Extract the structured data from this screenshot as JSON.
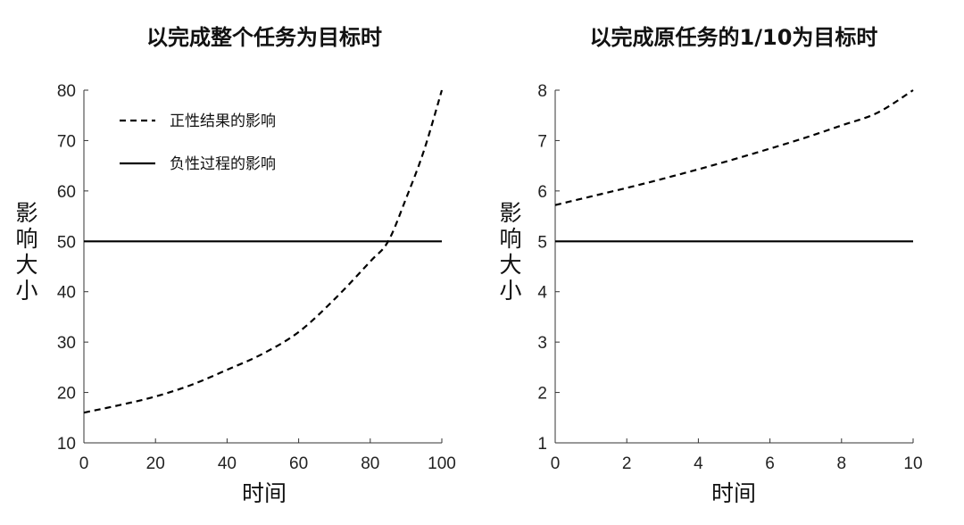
{
  "chart_data": [
    {
      "type": "line",
      "title": "以完成整个任务为目标时",
      "xlabel": "时间",
      "ylabel": "影响大小",
      "xlim": [
        0,
        100
      ],
      "ylim": [
        10,
        80
      ],
      "xticks": [
        0,
        20,
        40,
        60,
        80,
        100
      ],
      "yticks": [
        10,
        20,
        30,
        40,
        50,
        60,
        70,
        80
      ],
      "grid": false,
      "legend_position": "top-left",
      "series": [
        {
          "name": "正性结果的影响",
          "style": "dashed",
          "color": "#000000",
          "x": [
            0,
            10,
            20,
            30,
            40,
            50,
            60,
            70,
            80,
            85,
            90,
            95,
            100
          ],
          "y": [
            16,
            17.5,
            19.2,
            21.5,
            24.5,
            27.7,
            32,
            38.5,
            46,
            50,
            58.5,
            68,
            80
          ]
        },
        {
          "name": "负性过程的影响",
          "style": "solid",
          "color": "#000000",
          "x": [
            0,
            100
          ],
          "y": [
            50,
            50
          ]
        }
      ]
    },
    {
      "type": "line",
      "title": "以完成原任务的1/10为目标时",
      "xlabel": "时间",
      "ylabel": "影响大小",
      "xlim": [
        0,
        10
      ],
      "ylim": [
        1,
        8
      ],
      "xticks": [
        0,
        2,
        4,
        6,
        8,
        10
      ],
      "yticks": [
        1,
        2,
        3,
        4,
        5,
        6,
        7,
        8
      ],
      "grid": false,
      "series": [
        {
          "style": "dashed",
          "color": "#000000",
          "x": [
            0,
            1,
            2,
            3,
            4,
            5,
            6,
            7,
            8,
            9,
            10
          ],
          "y": [
            5.72,
            5.89,
            6.06,
            6.24,
            6.43,
            6.63,
            6.84,
            7.06,
            7.3,
            7.55,
            8.0
          ]
        },
        {
          "style": "solid",
          "color": "#000000",
          "x": [
            0,
            10
          ],
          "y": [
            5,
            5
          ]
        }
      ]
    }
  ]
}
